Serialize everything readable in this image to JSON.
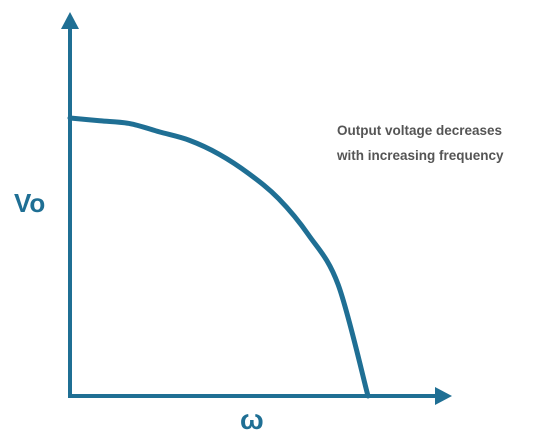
{
  "chart_data": {
    "type": "line",
    "ylabel": "Vo",
    "xlabel": "ω",
    "annotation": {
      "line1": "Output voltage decreases",
      "line2": "with increasing frequency"
    },
    "grid": false,
    "ticks": false,
    "series": [
      {
        "x": [
          0,
          0.1,
          0.2,
          0.3,
          0.4,
          0.5,
          0.6,
          0.7,
          0.8,
          0.9,
          1.0
        ],
        "values": [
          1.0,
          0.99,
          0.98,
          0.95,
          0.92,
          0.87,
          0.8,
          0.71,
          0.58,
          0.4,
          0.0
        ]
      }
    ],
    "xlim": [
      0,
      1.0
    ],
    "ylim": [
      0,
      1.0
    ],
    "colors": {
      "axis": "#1f6f94",
      "curve": "#1f6f94",
      "text": "#555555"
    }
  }
}
